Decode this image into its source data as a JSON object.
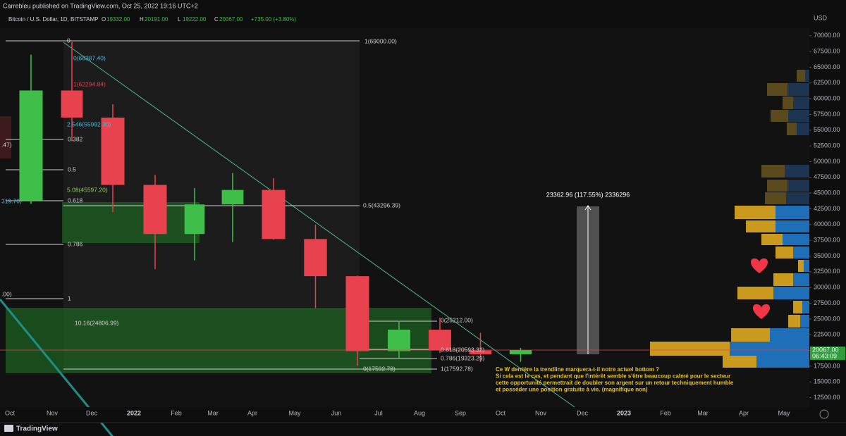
{
  "chart_data": {
    "type": "candlestick",
    "published": "Carrebleu published on TradingView.com, Oct 25, 2022 19:16 UTC+2",
    "title": "Bitcoin / U.S. Dollar, 1D, BITSTAMP",
    "ohlc": [
      {
        "key": "O",
        "value": "19332.00"
      },
      {
        "key": "H",
        "value": "20191.00"
      },
      {
        "key": "L",
        "value": "19222.00"
      },
      {
        "key": "C",
        "value": "20067.00"
      }
    ],
    "change": "+735.00 (+3.80%)",
    "currency": "USD",
    "categories": [
      "Oct",
      "Nov",
      "Dec",
      "2022",
      "Feb",
      "Mar",
      "Apr",
      "May",
      "Jun",
      "Jul",
      "Aug",
      "Sep",
      "Oct",
      "Nov",
      "Dec",
      "2023",
      "Feb",
      "Mar",
      "Apr",
      "May"
    ],
    "open": [
      43800,
      61300,
      57000,
      46300,
      38500,
      43200,
      45500,
      37700,
      31800,
      19900,
      23300,
      20000,
      19400,
      null,
      null,
      null,
      null,
      null,
      null,
      null
    ],
    "high": [
      67000,
      69000,
      59100,
      47900,
      45800,
      48200,
      47400,
      40000,
      31900,
      24700,
      25200,
      22800,
      20400,
      null,
      null,
      null,
      null,
      null,
      null,
      null
    ],
    "low": [
      43300,
      53300,
      42000,
      32900,
      34300,
      37200,
      37600,
      26700,
      17600,
      18800,
      19600,
      18150,
      18200,
      null,
      null,
      null,
      null,
      null,
      null,
      null
    ],
    "close": [
      61300,
      57000,
      46300,
      38500,
      43200,
      45500,
      37700,
      31800,
      19900,
      23300,
      20000,
      19400,
      20067,
      null,
      null,
      null,
      null,
      null,
      null,
      null
    ],
    "up_color": "#3fbf4a",
    "down_color": "#e8424f",
    "ylim": [
      11000,
      71200
    ],
    "yticks": [
      {
        "value": 70000,
        "label": "70000.00"
      },
      {
        "value": 67500,
        "label": "67500.00"
      },
      {
        "value": 65000,
        "label": "65000.00"
      },
      {
        "value": 62500,
        "label": "62500.00"
      },
      {
        "value": 60000,
        "label": "60000.00"
      },
      {
        "value": 57500,
        "label": "57500.00"
      },
      {
        "value": 55000,
        "label": "55000.00"
      },
      {
        "value": 52500,
        "label": "52500.00"
      },
      {
        "value": 50000,
        "label": "50000.00"
      },
      {
        "value": 47500,
        "label": "47500.00"
      },
      {
        "value": 45000,
        "label": "45000.00"
      },
      {
        "value": 42500,
        "label": "42500.00"
      },
      {
        "value": 40000,
        "label": "40000.00"
      },
      {
        "value": 37500,
        "label": "37500.00"
      },
      {
        "value": 35000,
        "label": "35000.00"
      },
      {
        "value": 32500,
        "label": "32500.00"
      },
      {
        "value": 30000,
        "label": "30000.00"
      },
      {
        "value": 27500,
        "label": "27500.00"
      },
      {
        "value": 25000,
        "label": "25000.00"
      },
      {
        "value": 22500,
        "label": "22500.00"
      },
      {
        "value": 20000,
        "label": "20000.00"
      },
      {
        "value": 17500,
        "label": "17500.00"
      },
      {
        "value": 15000,
        "label": "15000.00"
      },
      {
        "value": 12500,
        "label": "12500.00"
      }
    ],
    "last_price": {
      "value": 20067,
      "label": "20067.00"
    },
    "countdown": "06:43:09",
    "fib_labels": [
      "0",
      "1(69000.00)",
      "0(66387.40)",
      "1(62294.84)",
      "2.546(55992.30)",
      "0.382",
      "0.5",
      "5.08(45597.20)",
      "0.618",
      "0.786",
      "1",
      "10.16(24806.99)",
      "0.5(43296.39)",
      "0(25212.00)",
      "0.618(20593.32)",
      "0.786(19323.29)",
      "0(17592.78)",
      "1(17592.78)",
      ".47)",
      "319.70)",
      ".00)"
    ],
    "measure_label": "23362.96 (117.55%) 2336296",
    "annotation": [
      "Ce W derrière la trendline marquera-t-il notre actuel bottom ?",
      "Si cela est le cas, et pendant que l'intérêt semble s'être beaucoup calmé pour le secteur",
      "cette opportunité permettrait de doubler son argent sur un retour techniquement humble",
      "et posséder une position gratuite à vie. (magnifique non)"
    ],
    "brand": "TradingView"
  }
}
